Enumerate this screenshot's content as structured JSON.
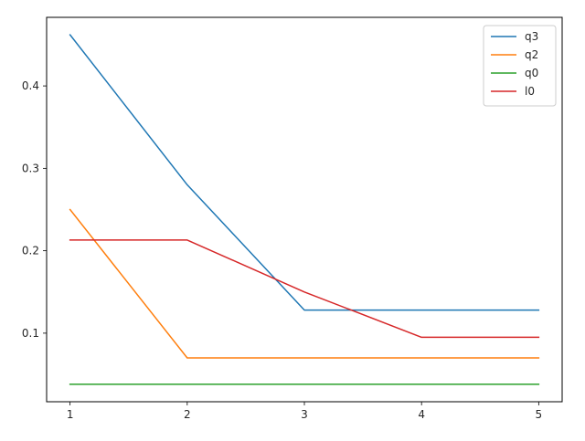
{
  "chart_data": {
    "type": "line",
    "x": [
      1,
      2,
      3,
      4,
      5
    ],
    "series": [
      {
        "name": "q3",
        "color": "#1f77b4",
        "values": [
          0.462,
          0.28,
          0.128,
          0.128,
          0.128
        ]
      },
      {
        "name": "q2",
        "color": "#ff7f0e",
        "values": [
          0.25,
          0.07,
          0.07,
          0.07,
          0.07
        ]
      },
      {
        "name": "q0",
        "color": "#2ca02c",
        "values": [
          0.038,
          0.038,
          0.038,
          0.038,
          0.038
        ]
      },
      {
        "name": "l0",
        "color": "#d62728",
        "values": [
          0.213,
          0.213,
          0.15,
          0.095,
          0.095
        ]
      }
    ],
    "xticks": [
      "1",
      "2",
      "3",
      "4",
      "5"
    ],
    "yticks": [
      "0.1",
      "0.2",
      "0.3",
      "0.4"
    ],
    "ytick_values": [
      0.1,
      0.2,
      0.3,
      0.4
    ],
    "xlim": [
      0.8,
      5.2
    ],
    "ylim": [
      0.0168,
      0.4832
    ],
    "grid": false,
    "legend_position": "top-right"
  }
}
